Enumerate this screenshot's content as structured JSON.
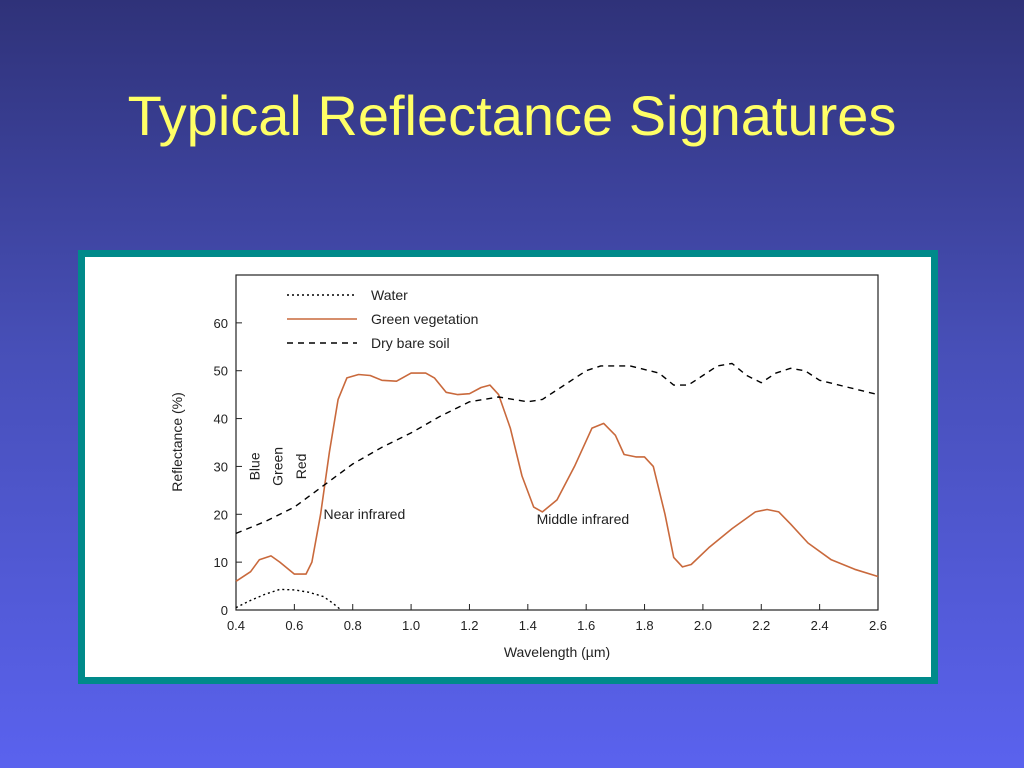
{
  "slide": {
    "title": "Typical Reflectance Signatures"
  },
  "chart_data": {
    "type": "line",
    "xlabel": "Wavelength (µm)",
    "ylabel": "Reflectance (%)",
    "xlim": [
      0.4,
      2.6
    ],
    "ylim": [
      0,
      70
    ],
    "x_ticks": [
      "0.4",
      "0.6",
      "0.8",
      "1.0",
      "1.2",
      "1.4",
      "1.6",
      "1.8",
      "2.0",
      "2.2",
      "2.4",
      "2.6"
    ],
    "y_ticks": [
      "0",
      "10",
      "20",
      "30",
      "40",
      "50",
      "60"
    ],
    "grid": false,
    "legend": "top-left",
    "series": [
      {
        "name": "Water",
        "style": "dotted",
        "color": "#000000",
        "points": [
          [
            0.4,
            0.5
          ],
          [
            0.45,
            2
          ],
          [
            0.5,
            3.3
          ],
          [
            0.55,
            4.3
          ],
          [
            0.6,
            4.2
          ],
          [
            0.65,
            3.7
          ],
          [
            0.7,
            2.8
          ],
          [
            0.73,
            1.5
          ],
          [
            0.76,
            0
          ]
        ]
      },
      {
        "name": "Green vegetation",
        "style": "solid",
        "color": "#c9693c",
        "points": [
          [
            0.4,
            6
          ],
          [
            0.45,
            8
          ],
          [
            0.48,
            10.5
          ],
          [
            0.52,
            11.3
          ],
          [
            0.55,
            10
          ],
          [
            0.6,
            7.5
          ],
          [
            0.64,
            7.5
          ],
          [
            0.66,
            10
          ],
          [
            0.69,
            20
          ],
          [
            0.72,
            33
          ],
          [
            0.75,
            44
          ],
          [
            0.78,
            48.5
          ],
          [
            0.82,
            49.2
          ],
          [
            0.86,
            49
          ],
          [
            0.9,
            48
          ],
          [
            0.95,
            47.8
          ],
          [
            1.0,
            49.5
          ],
          [
            1.05,
            49.5
          ],
          [
            1.08,
            48.5
          ],
          [
            1.12,
            45.5
          ],
          [
            1.16,
            45
          ],
          [
            1.2,
            45.2
          ],
          [
            1.24,
            46.5
          ],
          [
            1.27,
            47
          ],
          [
            1.3,
            45
          ],
          [
            1.34,
            38
          ],
          [
            1.38,
            28
          ],
          [
            1.42,
            21.5
          ],
          [
            1.45,
            20.5
          ],
          [
            1.5,
            23
          ],
          [
            1.56,
            30
          ],
          [
            1.62,
            38
          ],
          [
            1.66,
            39
          ],
          [
            1.7,
            36.5
          ],
          [
            1.73,
            32.5
          ],
          [
            1.77,
            32
          ],
          [
            1.8,
            32
          ],
          [
            1.83,
            30
          ],
          [
            1.87,
            20
          ],
          [
            1.9,
            11
          ],
          [
            1.93,
            9
          ],
          [
            1.96,
            9.5
          ],
          [
            2.02,
            13
          ],
          [
            2.1,
            17
          ],
          [
            2.18,
            20.5
          ],
          [
            2.22,
            21
          ],
          [
            2.26,
            20.5
          ],
          [
            2.3,
            18
          ],
          [
            2.36,
            14
          ],
          [
            2.44,
            10.5
          ],
          [
            2.52,
            8.5
          ],
          [
            2.6,
            7
          ]
        ]
      },
      {
        "name": "Dry bare soil",
        "style": "dashed",
        "color": "#000000",
        "points": [
          [
            0.4,
            16
          ],
          [
            0.5,
            18.5
          ],
          [
            0.6,
            21.5
          ],
          [
            0.7,
            26
          ],
          [
            0.8,
            30.5
          ],
          [
            0.9,
            34
          ],
          [
            1.0,
            37
          ],
          [
            1.1,
            40.5
          ],
          [
            1.2,
            43.5
          ],
          [
            1.3,
            44.5
          ],
          [
            1.35,
            44
          ],
          [
            1.4,
            43.5
          ],
          [
            1.45,
            44
          ],
          [
            1.5,
            46
          ],
          [
            1.6,
            50
          ],
          [
            1.65,
            51
          ],
          [
            1.75,
            51
          ],
          [
            1.85,
            49.5
          ],
          [
            1.9,
            47
          ],
          [
            1.95,
            47
          ],
          [
            2.0,
            49
          ],
          [
            2.05,
            51
          ],
          [
            2.1,
            51.5
          ],
          [
            2.15,
            49
          ],
          [
            2.2,
            47.5
          ],
          [
            2.25,
            49.5
          ],
          [
            2.3,
            50.5
          ],
          [
            2.35,
            50
          ],
          [
            2.4,
            48
          ],
          [
            2.5,
            46.5
          ],
          [
            2.6,
            45
          ]
        ]
      }
    ],
    "annotations": [
      {
        "text": "Blue",
        "x": 0.48,
        "y": 30,
        "rotate": -90
      },
      {
        "text": "Green",
        "x": 0.56,
        "y": 30,
        "rotate": -90
      },
      {
        "text": "Red",
        "x": 0.64,
        "y": 30,
        "rotate": -90
      },
      {
        "text": "Near infrared",
        "x": 0.7,
        "y": 19
      },
      {
        "text": "Middle infrared",
        "x": 1.43,
        "y": 18
      }
    ]
  }
}
